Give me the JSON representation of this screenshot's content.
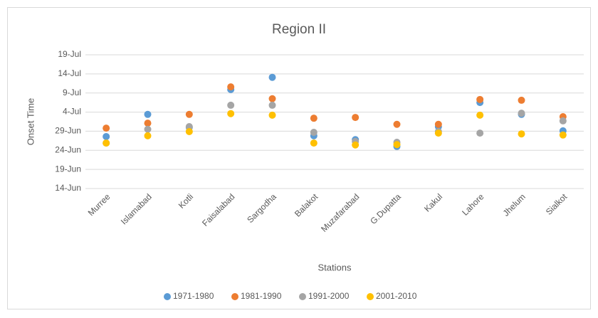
{
  "chart_data": {
    "type": "scatter",
    "title": "Region II",
    "x_label": "Stations",
    "y_label": "Onset Time",
    "categories": [
      "Murree",
      "Islamabad",
      "Kotli",
      "Faisalabad",
      "Sargodha",
      "Balakot",
      "Muzafarabad",
      "G.Dupatta",
      "Kakul",
      "Lahore",
      "Jhelum",
      "Sialkot"
    ],
    "series": [
      {
        "name": "1971-1980",
        "color": "#5b9bd5",
        "values": [
          178.6,
          184.4,
          181.0,
          190.9,
          194.1,
          178.8,
          177.8,
          176.0,
          181.2,
          187.5,
          184.4,
          180.1
        ]
      },
      {
        "name": "1981-1990",
        "color": "#ed7d31",
        "values": [
          180.8,
          182.1,
          184.4,
          191.6,
          188.5,
          183.4,
          183.6,
          181.8,
          181.8,
          188.3,
          188.1,
          183.8
        ]
      },
      {
        "name": "1991-2000",
        "color": "#a5a5a5",
        "values": [
          176.9,
          180.5,
          181.2,
          186.8,
          186.8,
          179.7,
          177.3,
          177.1,
          179.9,
          179.5,
          184.7,
          182.7
        ]
      },
      {
        "name": "2001-2010",
        "color": "#ffc000",
        "values": [
          176.9,
          178.8,
          179.9,
          184.6,
          184.2,
          176.9,
          176.4,
          176.5,
          179.5,
          184.2,
          179.3,
          179.0
        ]
      }
    ],
    "ylim": [
      165,
      200
    ],
    "yticks": [
      {
        "value": 165,
        "label": "14-Jun"
      },
      {
        "value": 170,
        "label": "19-Jun"
      },
      {
        "value": 175,
        "label": "24-Jun"
      },
      {
        "value": 180,
        "label": "29-Jun"
      },
      {
        "value": 185,
        "label": "4-Jul"
      },
      {
        "value": 190,
        "label": "9-Jul"
      },
      {
        "value": 195,
        "label": "14-Jul"
      },
      {
        "value": 200,
        "label": "19-Jul"
      }
    ],
    "grid": true
  }
}
